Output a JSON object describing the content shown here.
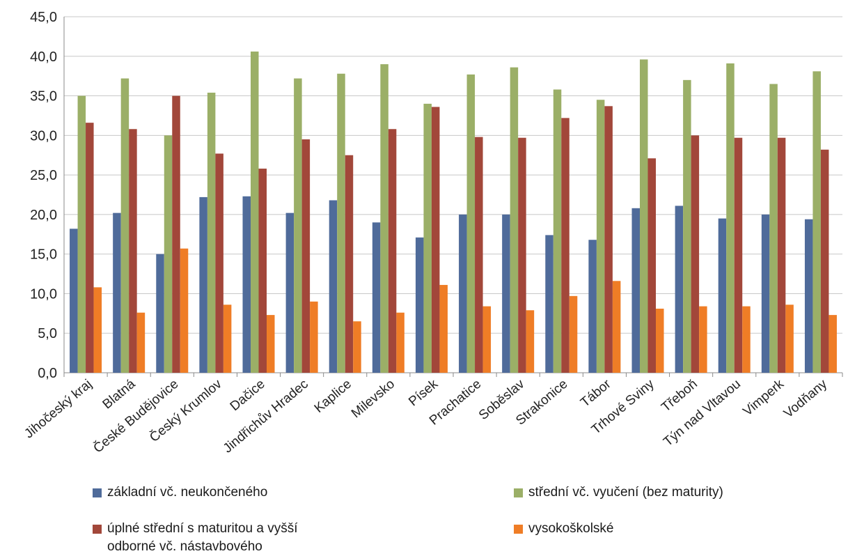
{
  "chart_data": {
    "type": "bar",
    "categories": [
      "Jihočeský kraj",
      "Blatná",
      "České Budějovice",
      "Český Krumlov",
      "Dačice",
      "Jindřichův Hradec",
      "Kaplice",
      "Milevsko",
      "Písek",
      "Prachatice",
      "Soběslav",
      "Strakonice",
      "Tábor",
      "Trhové Sviny",
      "Třeboň",
      "Týn nad Vltavou",
      "Vimperk",
      "Vodňany"
    ],
    "series": [
      {
        "name": "základní vč. neukončeného",
        "color": "#4F6B9A",
        "values": [
          18.2,
          20.2,
          15.0,
          22.2,
          22.3,
          20.2,
          21.8,
          19.0,
          17.1,
          20.0,
          20.0,
          17.4,
          16.8,
          20.8,
          21.1,
          19.5,
          20.0,
          19.4
        ]
      },
      {
        "name": "střední vč. vyučení (bez maturity)",
        "color": "#9BAF67",
        "values": [
          35.0,
          37.2,
          30.0,
          35.4,
          40.6,
          37.2,
          37.8,
          39.0,
          34.0,
          37.7,
          38.6,
          35.8,
          34.5,
          39.6,
          37.0,
          39.1,
          36.5,
          38.1
        ]
      },
      {
        "name": "úplné střední s maturitou a vyšší\nodborné vč. nástavbového",
        "color": "#A2473A",
        "values": [
          31.6,
          30.8,
          35.0,
          27.7,
          25.8,
          29.5,
          27.5,
          30.8,
          33.6,
          29.8,
          29.7,
          32.2,
          33.7,
          27.1,
          30.0,
          29.7,
          29.7,
          28.2
        ]
      },
      {
        "name": "vysokoškolské",
        "color": "#EF7D26",
        "values": [
          10.8,
          7.6,
          15.7,
          8.6,
          7.3,
          9.0,
          6.5,
          7.6,
          11.1,
          8.4,
          7.9,
          9.7,
          11.6,
          8.1,
          8.4,
          8.4,
          8.6,
          7.3
        ]
      }
    ],
    "ylim": [
      0,
      45
    ],
    "yticks": [
      "0,0",
      "5,0",
      "10,0",
      "15,0",
      "20,0",
      "25,0",
      "30,0",
      "35,0",
      "40,0",
      "45,0"
    ],
    "grid": true,
    "legend_position": "bottom"
  },
  "legend": [
    {
      "label": "základní vč. neukončeného",
      "color": "#4F6B9A"
    },
    {
      "label": "střední vč. vyučení (bez maturity)",
      "color": "#9BAF67"
    },
    {
      "label": "úplné střední s maturitou a vyšší\nodborné vč. nástavbového",
      "color": "#A2473A"
    },
    {
      "label": "vysokoškolské",
      "color": "#EF7D26"
    }
  ]
}
